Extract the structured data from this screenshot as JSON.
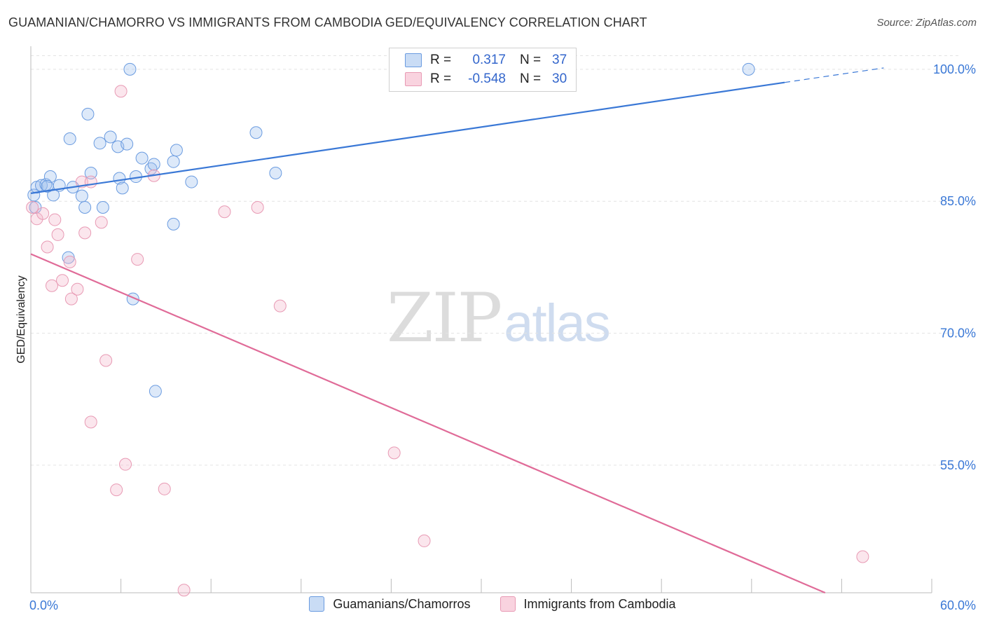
{
  "header": {
    "title": "GUAMANIAN/CHAMORRO VS IMMIGRANTS FROM CAMBODIA GED/EQUIVALENCY CORRELATION CHART",
    "source": "Source: ZipAtlas.com"
  },
  "watermark": {
    "zip": "ZIP",
    "atlas": "atlas"
  },
  "legend": {
    "rows": [
      {
        "r_label": "R =",
        "r_value": "0.317",
        "n_label": "N =",
        "n_value": "37",
        "color": "#9dbfed"
      },
      {
        "r_label": "R =",
        "r_value": "-0.548",
        "n_label": "N =",
        "n_value": "30",
        "color": "#f4b8cb"
      }
    ]
  },
  "bottom_legend": {
    "items": [
      {
        "label": "Guamanians/Chamorros",
        "color": "#9dbfed"
      },
      {
        "label": "Immigrants from Cambodia",
        "color": "#f4b8cb"
      }
    ]
  },
  "chart_data": {
    "type": "scatter",
    "title": "GUAMANIAN/CHAMORRO VS IMMIGRANTS FROM CAMBODIA GED/EQUIVALENCY CORRELATION CHART",
    "xlabel": "",
    "ylabel": "GED/Equivalency",
    "xlim": [
      0,
      60
    ],
    "ylim": [
      40.5,
      101.5
    ],
    "x_tick_labels": [
      "0.0%",
      "60.0%"
    ],
    "y_ticks": [
      55,
      70,
      85,
      100
    ],
    "y_tick_labels": [
      "55.0%",
      "70.0%",
      "85.0%",
      "100.0%"
    ],
    "colors": {
      "blue": "#3a78d6",
      "pink": "#e06b98",
      "blue_fill": "#c9dcf5",
      "pink_fill": "#f9d3df"
    },
    "series": [
      {
        "name": "Guamanians/Chamorros",
        "color": "blue",
        "points": [
          [
            0.2,
            85.7
          ],
          [
            0.4,
            86.6
          ],
          [
            0.7,
            86.8
          ],
          [
            1.0,
            86.9
          ],
          [
            1.3,
            87.8
          ],
          [
            1.5,
            85.7
          ],
          [
            1.9,
            86.8
          ],
          [
            2.8,
            86.6
          ],
          [
            3.4,
            85.6
          ],
          [
            3.6,
            84.3
          ],
          [
            2.5,
            78.6
          ],
          [
            4.0,
            88.2
          ],
          [
            4.8,
            84.3
          ],
          [
            4.6,
            91.6
          ],
          [
            5.3,
            92.3
          ],
          [
            5.8,
            91.2
          ],
          [
            6.4,
            91.5
          ],
          [
            5.9,
            87.6
          ],
          [
            6.1,
            86.5
          ],
          [
            7.4,
            89.9
          ],
          [
            6.8,
            73.9
          ],
          [
            8.3,
            63.4
          ],
          [
            8.0,
            88.7
          ],
          [
            8.2,
            89.2
          ],
          [
            9.5,
            89.5
          ],
          [
            9.7,
            90.8
          ],
          [
            9.5,
            82.4
          ],
          [
            10.7,
            87.2
          ],
          [
            15.0,
            92.8
          ],
          [
            16.3,
            88.2
          ],
          [
            3.8,
            94.9
          ],
          [
            6.6,
            100.0
          ],
          [
            47.8,
            100.0
          ],
          [
            1.1,
            86.7
          ],
          [
            2.6,
            92.1
          ],
          [
            7.0,
            87.8
          ],
          [
            0.3,
            84.3
          ]
        ]
      },
      {
        "name": "Immigrants from Cambodia",
        "color": "pink",
        "points": [
          [
            0.1,
            84.3
          ],
          [
            0.4,
            83.0
          ],
          [
            0.8,
            83.6
          ],
          [
            1.1,
            79.8
          ],
          [
            1.4,
            75.4
          ],
          [
            1.6,
            82.9
          ],
          [
            1.8,
            81.2
          ],
          [
            2.1,
            76.0
          ],
          [
            2.6,
            78.1
          ],
          [
            2.7,
            73.9
          ],
          [
            3.1,
            75.0
          ],
          [
            3.4,
            87.2
          ],
          [
            3.6,
            81.4
          ],
          [
            4.0,
            87.2
          ],
          [
            4.0,
            59.9
          ],
          [
            4.7,
            82.6
          ],
          [
            5.0,
            66.9
          ],
          [
            5.7,
            52.2
          ],
          [
            6.0,
            97.5
          ],
          [
            6.3,
            55.1
          ],
          [
            7.1,
            78.4
          ],
          [
            8.2,
            87.9
          ],
          [
            8.9,
            52.3
          ],
          [
            10.2,
            40.8
          ],
          [
            12.9,
            83.8
          ],
          [
            15.1,
            84.3
          ],
          [
            16.6,
            73.1
          ],
          [
            24.2,
            56.4
          ],
          [
            26.2,
            46.4
          ],
          [
            55.4,
            44.6
          ]
        ]
      }
    ],
    "trend_lines": [
      {
        "series": "Guamanians/Chamorros",
        "x_start": 0,
        "y_start": 85.9,
        "x_end": 50.2,
        "y_end": 98.5,
        "dash_x_end": 56.8,
        "dash_y_end": 100.15
      },
      {
        "series": "Immigrants from Cambodia",
        "x_start": 0,
        "y_start": 79.0,
        "x_end": 52.9,
        "y_end": 40.5
      }
    ]
  }
}
